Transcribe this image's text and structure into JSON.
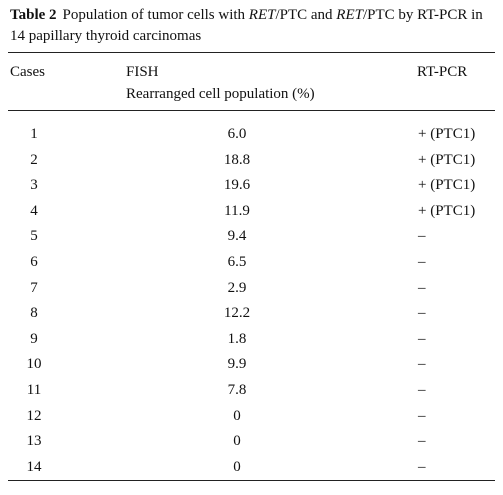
{
  "caption": {
    "label": "Table 2",
    "parts": [
      "Population of tumor cells with ",
      "RET",
      "/PTC and ",
      "RET",
      "/PTC by RT-PCR in 14 papillary thyroid carcinomas"
    ]
  },
  "table": {
    "headers": [
      "Cases",
      "FISH",
      "Rearranged cell population (%)",
      "RT-PCR"
    ],
    "rows": [
      [
        "1",
        "6.0",
        "+ (PTC1)"
      ],
      [
        "2",
        "18.8",
        "+ (PTC1)"
      ],
      [
        "3",
        "19.6",
        "+ (PTC1)"
      ],
      [
        "4",
        "11.9",
        "+ (PTC1)"
      ],
      [
        "5",
        "9.4",
        "–"
      ],
      [
        "6",
        "6.5",
        "–"
      ],
      [
        "7",
        "2.9",
        "–"
      ],
      [
        "8",
        "12.2",
        "–"
      ],
      [
        "9",
        "1.8",
        "–"
      ],
      [
        "10",
        "9.9",
        "–"
      ],
      [
        "11",
        "7.8",
        "–"
      ],
      [
        "12",
        "0",
        "–"
      ],
      [
        "13",
        "0",
        "–"
      ],
      [
        "14",
        "0",
        "–"
      ]
    ]
  }
}
